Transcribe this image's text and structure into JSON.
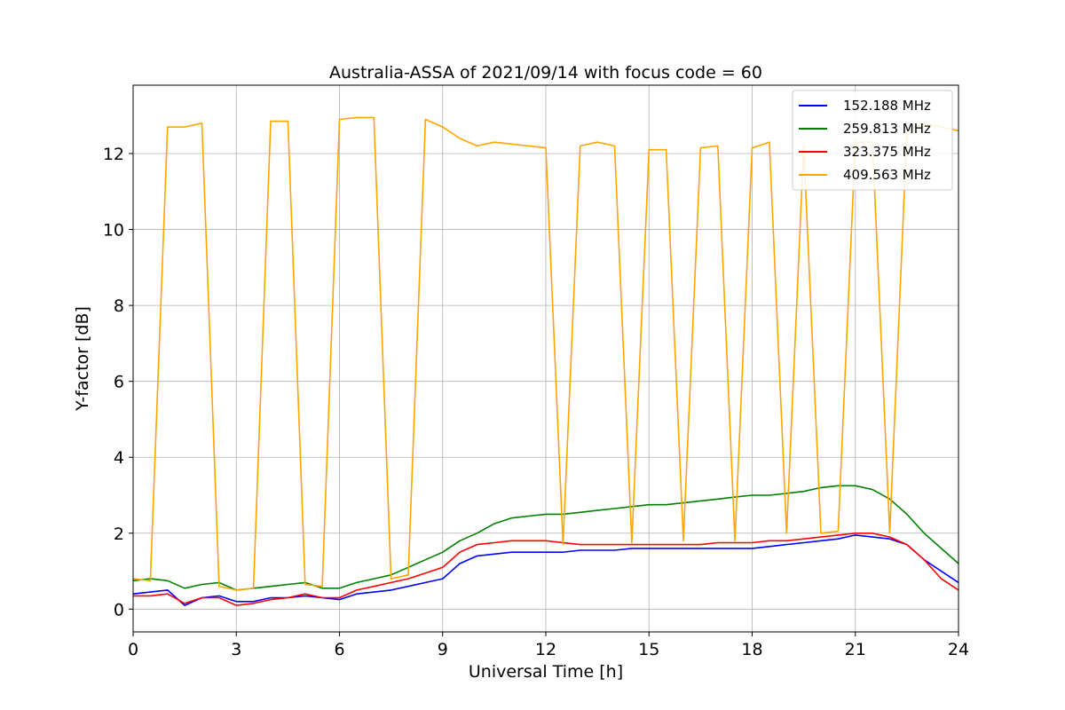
{
  "chart_data": {
    "type": "line",
    "title": "Australia-ASSA of 2021/09/14 with focus code = 60",
    "xlabel": "Universal Time [h]",
    "ylabel": "Y-factor [dB]",
    "xlim": [
      0,
      24
    ],
    "ylim": [
      -0.6,
      13.8
    ],
    "xticks": [
      0,
      3,
      6,
      9,
      12,
      15,
      18,
      21,
      24
    ],
    "yticks": [
      0,
      2,
      4,
      6,
      8,
      10,
      12
    ],
    "grid": true,
    "legend_position": "top-right",
    "series": [
      {
        "name": "152.188 MHz",
        "color": "#0000ff",
        "x": [
          0,
          0.5,
          1.0,
          1.5,
          2.0,
          2.5,
          3.0,
          3.5,
          4.0,
          4.5,
          5.0,
          5.5,
          6.0,
          6.5,
          7.0,
          7.5,
          8.0,
          8.5,
          9.0,
          9.5,
          10.0,
          10.5,
          11.0,
          11.5,
          12.0,
          12.5,
          13.0,
          13.5,
          14.0,
          14.5,
          15.0,
          15.5,
          16.0,
          16.5,
          17.0,
          17.5,
          18.0,
          18.5,
          19.0,
          19.5,
          20.0,
          20.5,
          21.0,
          21.5,
          22.0,
          22.5,
          23.0,
          23.5,
          24.0
        ],
        "y": [
          0.4,
          0.45,
          0.5,
          0.1,
          0.3,
          0.35,
          0.2,
          0.2,
          0.3,
          0.3,
          0.35,
          0.3,
          0.25,
          0.4,
          0.45,
          0.5,
          0.6,
          0.7,
          0.8,
          1.2,
          1.4,
          1.45,
          1.5,
          1.5,
          1.5,
          1.5,
          1.55,
          1.55,
          1.55,
          1.6,
          1.6,
          1.6,
          1.6,
          1.6,
          1.6,
          1.6,
          1.6,
          1.65,
          1.7,
          1.75,
          1.8,
          1.85,
          1.95,
          1.9,
          1.85,
          1.7,
          1.3,
          1.0,
          0.7
        ]
      },
      {
        "name": "259.813 MHz",
        "color": "#008000",
        "x": [
          0,
          0.5,
          1.0,
          1.5,
          2.0,
          2.5,
          3.0,
          3.5,
          4.0,
          4.5,
          5.0,
          5.5,
          6.0,
          6.5,
          7.0,
          7.5,
          8.0,
          8.5,
          9.0,
          9.5,
          10.0,
          10.5,
          11.0,
          11.5,
          12.0,
          12.5,
          13.0,
          13.5,
          14.0,
          14.5,
          15.0,
          15.5,
          16.0,
          16.5,
          17.0,
          17.5,
          18.0,
          18.5,
          19.0,
          19.5,
          20.0,
          20.5,
          21.0,
          21.5,
          22.0,
          22.5,
          23.0,
          23.5,
          24.0
        ],
        "y": [
          0.75,
          0.8,
          0.75,
          0.55,
          0.65,
          0.7,
          0.5,
          0.55,
          0.6,
          0.65,
          0.7,
          0.55,
          0.55,
          0.7,
          0.8,
          0.9,
          1.1,
          1.3,
          1.5,
          1.8,
          2.0,
          2.25,
          2.4,
          2.45,
          2.5,
          2.5,
          2.55,
          2.6,
          2.65,
          2.7,
          2.75,
          2.75,
          2.8,
          2.85,
          2.9,
          2.95,
          3.0,
          3.0,
          3.05,
          3.1,
          3.2,
          3.25,
          3.25,
          3.15,
          2.9,
          2.5,
          2.0,
          1.6,
          1.2
        ]
      },
      {
        "name": "323.375 MHz",
        "color": "#ff0000",
        "x": [
          0,
          0.5,
          1.0,
          1.5,
          2.0,
          2.5,
          3.0,
          3.5,
          4.0,
          4.5,
          5.0,
          5.5,
          6.0,
          6.5,
          7.0,
          7.5,
          8.0,
          8.5,
          9.0,
          9.5,
          10.0,
          10.5,
          11.0,
          11.5,
          12.0,
          12.5,
          13.0,
          13.5,
          14.0,
          14.5,
          15.0,
          15.5,
          16.0,
          16.5,
          17.0,
          17.5,
          18.0,
          18.5,
          19.0,
          19.5,
          20.0,
          20.5,
          21.0,
          21.5,
          22.0,
          22.5,
          23.0,
          23.5,
          24.0
        ],
        "y": [
          0.35,
          0.35,
          0.4,
          0.15,
          0.3,
          0.3,
          0.1,
          0.15,
          0.25,
          0.3,
          0.4,
          0.3,
          0.3,
          0.5,
          0.6,
          0.7,
          0.8,
          0.95,
          1.1,
          1.5,
          1.7,
          1.75,
          1.8,
          1.8,
          1.8,
          1.75,
          1.7,
          1.7,
          1.7,
          1.7,
          1.7,
          1.7,
          1.7,
          1.7,
          1.75,
          1.75,
          1.75,
          1.8,
          1.8,
          1.85,
          1.9,
          1.95,
          2.0,
          2.0,
          1.9,
          1.7,
          1.3,
          0.8,
          0.5
        ]
      },
      {
        "name": "409.563 MHz",
        "color": "#ffa500",
        "x": [
          0,
          0.5,
          1.0,
          1.5,
          2.0,
          2.5,
          3.0,
          3.5,
          4.0,
          4.5,
          5.0,
          5.5,
          6.0,
          6.5,
          7.0,
          7.5,
          8.0,
          8.5,
          9.0,
          9.5,
          10.0,
          10.5,
          11.0,
          11.5,
          12.0,
          12.5,
          13.0,
          13.5,
          14.0,
          14.5,
          15.0,
          15.5,
          16.0,
          16.5,
          17.0,
          17.5,
          18.0,
          18.5,
          19.0,
          19.5,
          20.0,
          20.5,
          21.0,
          21.5,
          22.0,
          22.5,
          23.0,
          23.5,
          24.0
        ],
        "y": [
          0.8,
          0.75,
          12.7,
          12.7,
          12.8,
          0.6,
          0.5,
          0.55,
          12.85,
          12.85,
          0.65,
          0.6,
          12.9,
          12.95,
          12.95,
          0.8,
          0.9,
          12.9,
          12.7,
          12.4,
          12.2,
          12.3,
          12.25,
          12.2,
          12.15,
          1.7,
          12.2,
          12.3,
          12.2,
          1.75,
          12.1,
          12.1,
          1.8,
          12.15,
          12.2,
          1.8,
          12.15,
          12.3,
          2.0,
          12.2,
          2.0,
          2.05,
          12.3,
          12.3,
          2.0,
          12.6,
          12.8,
          12.7,
          12.6
        ]
      }
    ]
  }
}
